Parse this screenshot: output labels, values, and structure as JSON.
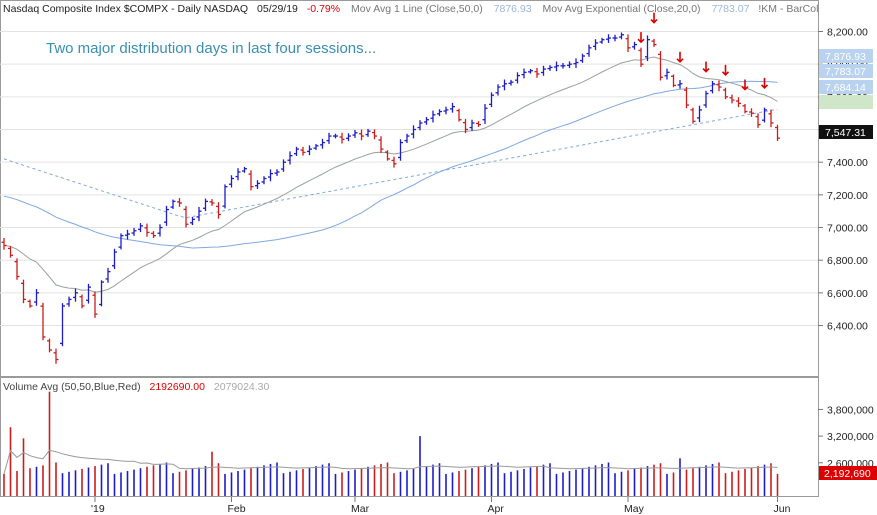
{
  "header": {
    "symbol_title": "Nasdaq Composite Index  $COMPX - Daily  NASDAQ",
    "date": "05/29/19",
    "change": "-0.79%",
    "ma1_label": "Mov Avg 1 Line (Close,50,0)",
    "ma1_value": "7876.93",
    "ema_label": "Mov Avg Exponential (Close,20,0)",
    "ema_value": "7783.07",
    "extra": "!KM - BarCol"
  },
  "annotation": "Two major distribution days in last four sessions...",
  "volume_header": {
    "label": "Volume Avg (50,50,Blue,Red)",
    "value1": "2192690.00",
    "value2": "2079024.30"
  },
  "price_labels": {
    "ma50": "7,876.93",
    "ema20": "7,783.07",
    "ma200": "7,684.14",
    "last": "7,547.31",
    "volume_last": "2,192,690"
  },
  "colors": {
    "up": "#1c1ccc",
    "down": "#cc1c1c",
    "ma50": "#7fa8e0",
    "ema20": "#9aa29a",
    "ma200": "#7fa8e0",
    "annotation": "#3a8fb0",
    "neg": "#dd0000",
    "arrow": "#dd0000",
    "grid": "#e3e3e3"
  },
  "chart_data": [
    {
      "type": "ohlc",
      "title": "Nasdaq Composite Index $COMPX - Daily NASDAQ",
      "y_ticks": [
        8200,
        8000,
        7800,
        7600,
        7400,
        7200,
        7000,
        6800,
        6600,
        6400
      ],
      "y_tick_labels": [
        "8,200.00",
        "8,000.00",
        "7,800.00",
        "7,600.00",
        "7,400.00",
        "7,200.00",
        "7,000.00",
        "6,800.00",
        "6,600.00",
        "6,400.00"
      ],
      "ylim": [
        6190,
        8250
      ],
      "x_labels": [
        {
          "label": "'19",
          "index": 14
        },
        {
          "label": "Feb",
          "index": 35
        },
        {
          "label": "Mar",
          "index": 54
        },
        {
          "label": "Apr",
          "index": 75
        },
        {
          "label": "May",
          "index": 96
        },
        {
          "label": "Jun",
          "index": 119
        }
      ],
      "grid": true,
      "closes": [
        6890,
        6830,
        6700,
        6560,
        6520,
        6600,
        6330,
        6250,
        6192,
        6520,
        6560,
        6600,
        6520,
        6635,
        6470,
        6666,
        6730,
        6850,
        6950,
        6960,
        6980,
        7010,
        6970,
        6950,
        7000,
        7110,
        7160,
        7150,
        7020,
        7050,
        7100,
        7160,
        7150,
        7080,
        7250,
        7300,
        7340,
        7360,
        7250,
        7270,
        7300,
        7330,
        7340,
        7400,
        7440,
        7480,
        7460,
        7480,
        7500,
        7520,
        7560,
        7560,
        7540,
        7560,
        7580,
        7560,
        7590,
        7560,
        7480,
        7420,
        7390,
        7520,
        7560,
        7600,
        7640,
        7660,
        7690,
        7710,
        7720,
        7740,
        7660,
        7600,
        7640,
        7630,
        7730,
        7810,
        7860,
        7880,
        7890,
        7930,
        7950,
        7960,
        7940,
        7970,
        7980,
        7990,
        7990,
        8000,
        8010,
        8050,
        8100,
        8130,
        8150,
        8160,
        8160,
        8180,
        8100,
        8120,
        8000,
        8150,
        8120,
        7920,
        7950,
        7870,
        7880,
        7750,
        7650,
        7720,
        7820,
        7880,
        7860,
        7800,
        7780,
        7760,
        7710,
        7700,
        7630,
        7720,
        7640,
        7547
      ],
      "volume_ylim": [
        2100000,
        4200000
      ],
      "volume_ticks": [
        3800000,
        3200000,
        2600000
      ],
      "volume_tick_labels": [
        "3,800,000",
        "3,200,000",
        "2,600,000"
      ]
    }
  ]
}
